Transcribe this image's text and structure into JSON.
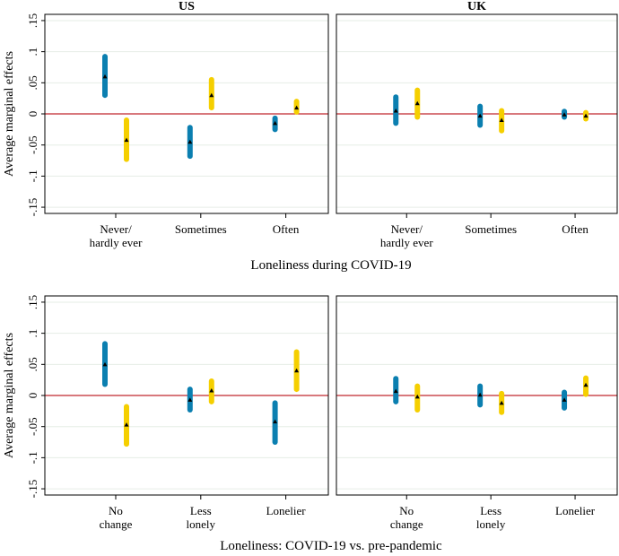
{
  "colors": {
    "series_a": "#0b7fb0",
    "series_b": "#f5cf00",
    "zero_line": "#c0272d",
    "grid": "#e6ede6"
  },
  "chart_data": [
    {
      "type": "scatter",
      "row": 1,
      "panels": [
        "US",
        "UK"
      ],
      "title_visible": [
        true,
        true
      ],
      "ylabel": "Average marginal effects",
      "xlabel": "Loneliness during COVID-19",
      "yticks": [
        ".15",
        ".1",
        ".05",
        "0",
        "-.05",
        "-.1",
        "-.15"
      ],
      "ytick_values": [
        0.15,
        0.1,
        0.05,
        0,
        -0.05,
        -0.1,
        -0.15
      ],
      "ylim": [
        -0.16,
        0.16
      ],
      "categories": [
        [
          "Never/",
          "hardly ever"
        ],
        [
          "Sometimes"
        ],
        [
          "Often"
        ]
      ],
      "series": [
        {
          "name": "series_a",
          "US": [
            {
              "est": 0.06,
              "lo": 0.03,
              "hi": 0.092
            },
            {
              "est": -0.045,
              "lo": -0.068,
              "hi": -0.022
            },
            {
              "est": -0.015,
              "lo": -0.025,
              "hi": -0.007
            }
          ],
          "UK": [
            {
              "est": 0.005,
              "lo": -0.015,
              "hi": 0.027
            },
            {
              "est": -0.003,
              "lo": -0.018,
              "hi": 0.012
            },
            {
              "est": -0.001,
              "lo": -0.005,
              "hi": 0.004
            }
          ]
        },
        {
          "name": "series_b",
          "US": [
            {
              "est": -0.042,
              "lo": -0.073,
              "hi": -0.01
            },
            {
              "est": 0.03,
              "lo": 0.01,
              "hi": 0.055
            },
            {
              "est": 0.01,
              "lo": 0.003,
              "hi": 0.02
            }
          ],
          "UK": [
            {
              "est": 0.017,
              "lo": -0.005,
              "hi": 0.038
            },
            {
              "est": -0.01,
              "lo": -0.027,
              "hi": 0.005
            },
            {
              "est": -0.003,
              "lo": -0.008,
              "hi": 0.002
            }
          ]
        }
      ]
    },
    {
      "type": "scatter",
      "row": 2,
      "panels": [
        "US",
        "UK"
      ],
      "title_visible": [
        false,
        false
      ],
      "ylabel": "Average marginal effects",
      "xlabel": "Loneliness: COVID-19 vs. pre-pandemic",
      "yticks": [
        ".15",
        ".1",
        ".05",
        "0",
        "-.05",
        "-.1",
        "-.15"
      ],
      "ytick_values": [
        0.15,
        0.1,
        0.05,
        0,
        -0.05,
        -0.1,
        -0.15
      ],
      "ylim": [
        -0.16,
        0.16
      ],
      "categories": [
        [
          "No",
          "change"
        ],
        [
          "Less",
          "lonely"
        ],
        [
          "Lonelier"
        ]
      ],
      "series": [
        {
          "name": "series_a",
          "US": [
            {
              "est": 0.05,
              "lo": 0.018,
              "hi": 0.083
            },
            {
              "est": -0.007,
              "lo": -0.023,
              "hi": 0.01
            },
            {
              "est": -0.042,
              "lo": -0.075,
              "hi": -0.012
            }
          ],
          "UK": [
            {
              "est": 0.007,
              "lo": -0.01,
              "hi": 0.027
            },
            {
              "est": 0.001,
              "lo": -0.015,
              "hi": 0.015
            },
            {
              "est": -0.007,
              "lo": -0.02,
              "hi": 0.005
            }
          ]
        },
        {
          "name": "series_b",
          "US": [
            {
              "est": -0.047,
              "lo": -0.078,
              "hi": -0.018
            },
            {
              "est": 0.008,
              "lo": -0.01,
              "hi": 0.023
            },
            {
              "est": 0.04,
              "lo": 0.01,
              "hi": 0.07
            }
          ],
          "UK": [
            {
              "est": -0.002,
              "lo": -0.023,
              "hi": 0.015
            },
            {
              "est": -0.012,
              "lo": -0.027,
              "hi": 0.003
            },
            {
              "est": 0.017,
              "lo": 0.002,
              "hi": 0.028
            }
          ]
        }
      ]
    }
  ]
}
